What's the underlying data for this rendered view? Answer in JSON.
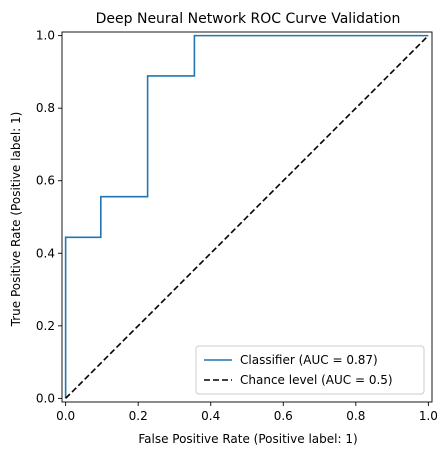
{
  "chart_data": {
    "type": "line",
    "title": "Deep Neural Network ROC Curve Validation",
    "xlabel": "False Positive Rate (Positive label: 1)",
    "ylabel": "True Positive Rate (Positive label: 1)",
    "xlim": [
      -0.01,
      1.01
    ],
    "ylim": [
      -0.01,
      1.01
    ],
    "xticks": [
      "0.0",
      "0.2",
      "0.4",
      "0.6",
      "0.8",
      "1.0"
    ],
    "yticks": [
      "0.0",
      "0.2",
      "0.4",
      "0.6",
      "0.8",
      "1.0"
    ],
    "grid": false,
    "legend_position": "lower-right",
    "series": [
      {
        "name": "Classifier (AUC = 0.87)",
        "color": "#1f77b4",
        "style": "solid",
        "x": [
          0.0,
          0.0,
          0.0,
          0.097,
          0.097,
          0.226,
          0.226,
          0.355,
          0.355,
          1.0
        ],
        "y": [
          0.0,
          0.111,
          0.444,
          0.444,
          0.556,
          0.556,
          0.889,
          0.889,
          1.0,
          1.0
        ]
      },
      {
        "name": "Chance level (AUC = 0.5)",
        "color": "#000000",
        "style": "dashed",
        "x": [
          0.0,
          1.0
        ],
        "y": [
          0.0,
          1.0
        ]
      }
    ]
  }
}
